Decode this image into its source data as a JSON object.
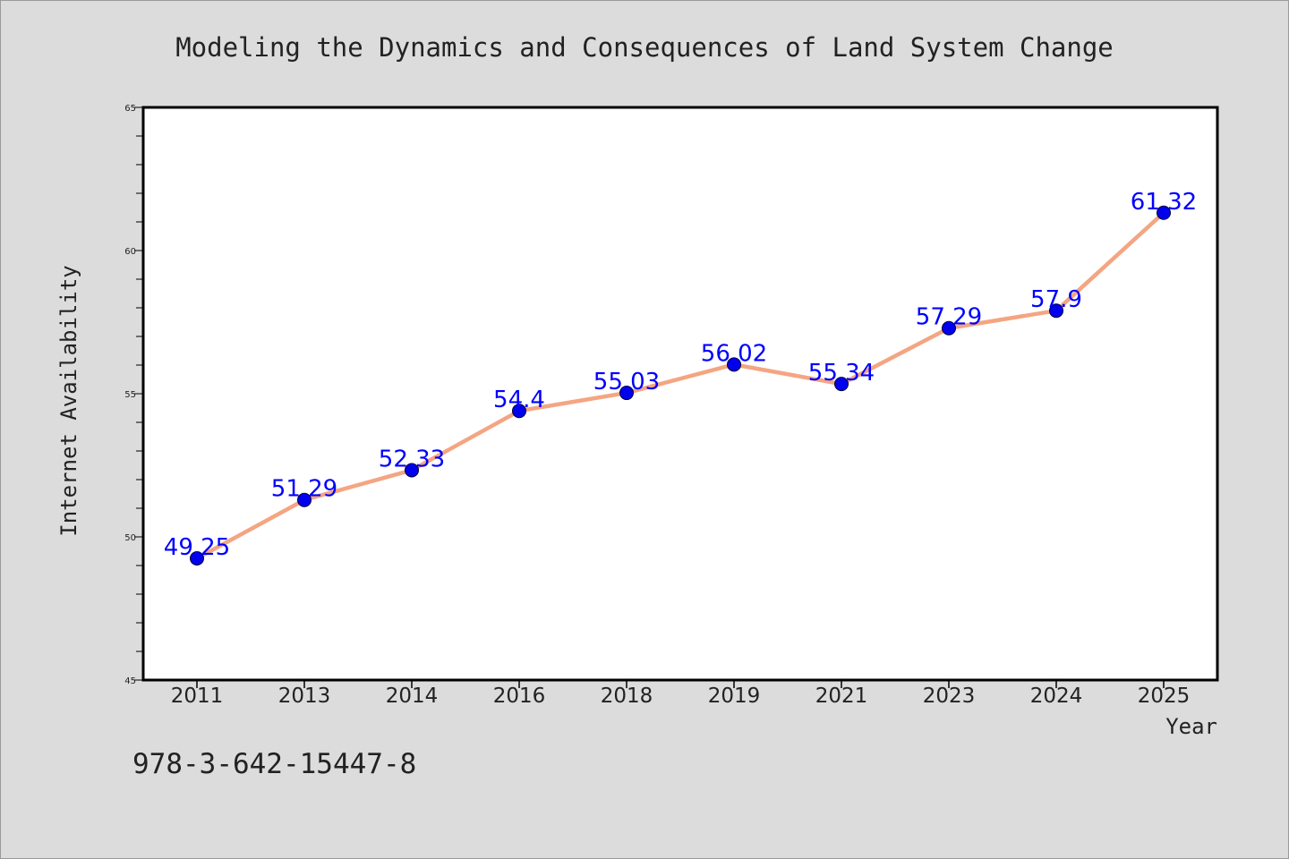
{
  "chart_data": {
    "type": "line",
    "title": "Modeling the Dynamics and Consequences of Land System Change",
    "xlabel": "Year",
    "ylabel": "Internet Availability",
    "categories": [
      "2011",
      "2013",
      "2014",
      "2016",
      "2018",
      "2019",
      "2021",
      "2023",
      "2024",
      "2025"
    ],
    "series": [
      {
        "values": [
          49.25,
          51.29,
          52.33,
          54.4,
          55.03,
          56.02,
          55.34,
          57.29,
          57.9,
          61.32
        ],
        "labels": [
          "49.25",
          "51.29",
          "52.33",
          "54.4",
          "55.03",
          "56.02",
          "55.34",
          "57.29",
          "57.9",
          "61.32"
        ]
      }
    ],
    "ylim": [
      45,
      65
    ],
    "yticks": [
      "45",
      "50",
      "55",
      "60",
      "65"
    ],
    "ytick_values": [
      45,
      50,
      55,
      60,
      65
    ],
    "grid": false,
    "legend": "none",
    "colors": {
      "background": "#dcdcdc",
      "plot_background": "#ffffff",
      "line": "#f4a582",
      "marker": "#0000ee",
      "data_label": "#0000ff",
      "text": "#222222"
    }
  },
  "footer": {
    "isbn": "978-3-642-15447-8"
  }
}
